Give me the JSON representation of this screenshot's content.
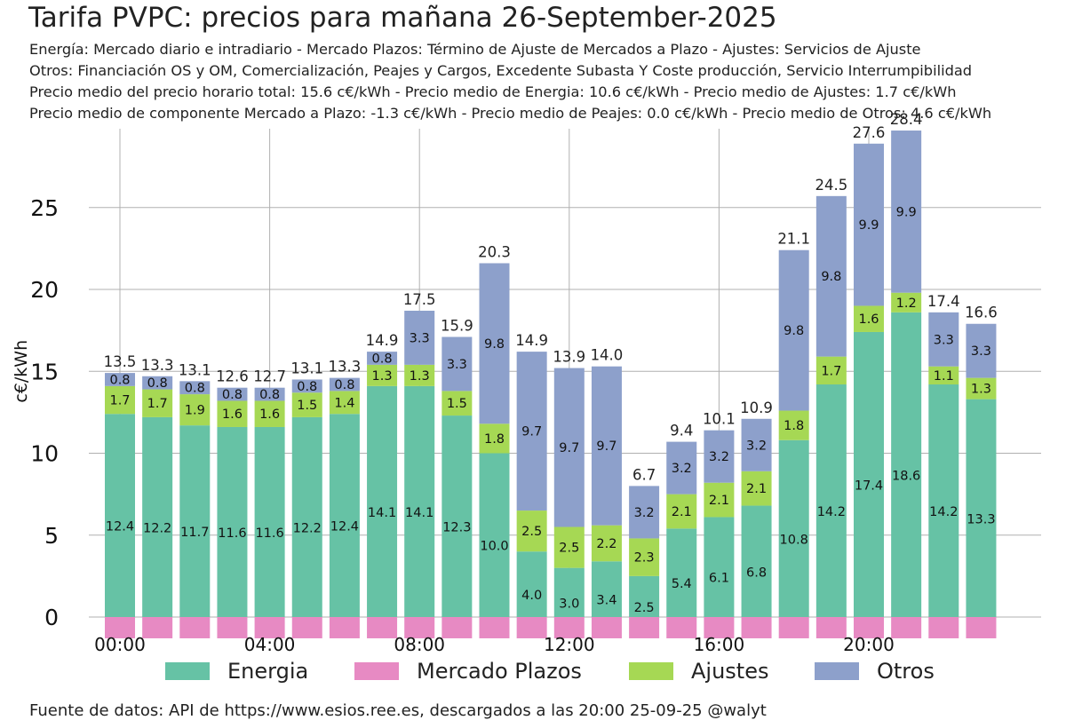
{
  "header": {
    "title": "Tarifa PVPC: precios para mañana 26-September-2025",
    "lines": [
      "Energía: Mercado diario e intradiario - Mercado Plazos: Término de Ajuste de Mercados a Plazo - Ajustes: Servicios de Ajuste",
      "Otros: Financiación OS y OM, Comercialización, Peajes y Cargos, Excedente Subasta Y Coste producción, Servicio Interrumpibilidad",
      "Precio medio del precio horario total: 15.6 c€/kWh - Precio medio de Energia: 10.6 c€/kWh - Precio medio de Ajustes: 1.7 c€/kWh",
      "Precio medio de componente Mercado a Plazo: -1.3 c€/kWh - Precio medio de Peajes: 0.0 c€/kWh - Precio medio de Otros: 4.6 c€/kWh"
    ]
  },
  "footer": "Fuente de datos: API de https://www.esios.ree.es, descargados a las 20:00 25-09-25    @walyt",
  "colors": {
    "energia": "#66c2a5",
    "plazos": "#e78ac3",
    "ajustes": "#a6d854",
    "otros": "#8da0cb",
    "grid": "#b0b0b0"
  },
  "chart_data": {
    "type": "bar",
    "stacked": true,
    "ylabel": "c€/kWh",
    "ylim": [
      -1,
      29.5
    ],
    "yticks": [
      0,
      5,
      10,
      15,
      20,
      25
    ],
    "xticks": [
      {
        "hour": 0,
        "label": "00:00"
      },
      {
        "hour": 4,
        "label": "04:00"
      },
      {
        "hour": 8,
        "label": "08:00"
      },
      {
        "hour": 12,
        "label": "12:00"
      },
      {
        "hour": 16,
        "label": "16:00"
      },
      {
        "hour": 20,
        "label": "20:00"
      }
    ],
    "grid": true,
    "legend_position": "bottom",
    "hours": [
      0,
      1,
      2,
      3,
      4,
      5,
      6,
      7,
      8,
      9,
      10,
      11,
      12,
      13,
      14,
      15,
      16,
      17,
      18,
      19,
      20,
      21,
      22,
      23
    ],
    "series": [
      {
        "name": "Energia",
        "key": "energia",
        "values": [
          12.4,
          12.2,
          11.7,
          11.6,
          11.6,
          12.2,
          12.4,
          14.1,
          14.1,
          12.3,
          10.0,
          4.0,
          3.0,
          3.4,
          2.5,
          5.4,
          6.1,
          6.8,
          10.8,
          14.2,
          17.4,
          18.6,
          14.2,
          13.3
        ]
      },
      {
        "name": "Mercado Plazos",
        "key": "plazos",
        "values": [
          -1.3,
          -1.3,
          -1.3,
          -1.3,
          -1.3,
          -1.3,
          -1.3,
          -1.3,
          -1.3,
          -1.3,
          -1.3,
          -1.3,
          -1.3,
          -1.3,
          -1.3,
          -1.3,
          -1.3,
          -1.3,
          -1.3,
          -1.3,
          -1.3,
          -1.3,
          -1.3,
          -1.3
        ]
      },
      {
        "name": "Ajustes",
        "key": "ajustes",
        "values": [
          1.7,
          1.7,
          1.9,
          1.6,
          1.6,
          1.5,
          1.4,
          1.3,
          1.3,
          1.5,
          1.8,
          2.5,
          2.5,
          2.2,
          2.3,
          2.1,
          2.1,
          2.1,
          1.8,
          1.7,
          1.6,
          1.2,
          1.1,
          1.3
        ]
      },
      {
        "name": "Otros",
        "key": "otros",
        "values": [
          0.8,
          0.8,
          0.8,
          0.8,
          0.8,
          0.8,
          0.8,
          0.8,
          3.3,
          3.3,
          9.8,
          9.7,
          9.7,
          9.7,
          3.2,
          3.2,
          3.2,
          3.2,
          9.8,
          9.8,
          9.9,
          9.9,
          3.3,
          3.3
        ]
      }
    ],
    "energia_labels": [
      "12.4",
      "12.2",
      "11.7",
      "11.6",
      "11.6",
      "12.2",
      "12.4",
      "14.1",
      "14.1",
      "12.3",
      "10.0",
      "4.0",
      "3.0",
      "3.4",
      "2.5",
      "5.4",
      "6.1",
      "6.8",
      "10.8",
      "14.2",
      "17.4",
      "18.6",
      "14.2",
      "13.3"
    ],
    "ajustes_labels": [
      "1.7",
      "1.7",
      "1.9",
      "1.6",
      "1.6",
      "1.5",
      "1.4",
      "1.3",
      "1.3",
      "1.5",
      "1.8",
      "2.5",
      "2.5",
      "2.2",
      "2.3",
      "2.1",
      "2.1",
      "2.1",
      "1.8",
      "1.7",
      "1.6",
      "1.2",
      "1.1",
      "1.3"
    ],
    "otros_labels": [
      "0.8",
      "0.8",
      "0.8",
      "0.8",
      "0.8",
      "0.8",
      "0.8",
      "0.8",
      "3.3",
      "3.3",
      "9.8",
      "9.7",
      "9.7",
      "9.7",
      "3.2",
      "3.2",
      "3.2",
      "3.2",
      "9.8",
      "9.8",
      "9.9",
      "9.9",
      "3.3",
      "3.3"
    ],
    "totals": [
      13.5,
      13.3,
      13.1,
      12.6,
      12.7,
      13.1,
      13.3,
      14.9,
      17.5,
      15.9,
      20.3,
      14.9,
      13.9,
      14.0,
      6.7,
      9.4,
      10.1,
      10.9,
      21.1,
      24.5,
      27.6,
      28.4,
      17.4,
      16.6
    ],
    "total_labels": [
      "13.5",
      "13.3",
      "13.1",
      "12.6",
      "12.7",
      "13.1",
      "13.3",
      "14.9",
      "17.5",
      "15.9",
      "20.3",
      "14.9",
      "13.9",
      "14.0",
      "6.7",
      "9.4",
      "10.1",
      "10.9",
      "21.1",
      "24.5",
      "27.6",
      "28.4",
      "17.4",
      "16.6"
    ]
  }
}
